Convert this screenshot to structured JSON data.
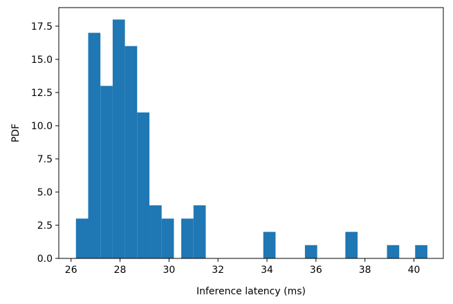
{
  "chart_data": {
    "type": "bar",
    "subtype": "histogram",
    "title": "",
    "xlabel": "Inference latency (ms)",
    "ylabel": "PDF",
    "xlim": [
      25.5,
      41.2
    ],
    "ylim": [
      0,
      18.9
    ],
    "xticks": [
      26,
      28,
      30,
      32,
      34,
      36,
      38,
      40
    ],
    "xtick_labels": [
      "26",
      "28",
      "30",
      "32",
      "34",
      "36",
      "38",
      "40"
    ],
    "yticks": [
      0.0,
      2.5,
      5.0,
      7.5,
      10.0,
      12.5,
      15.0,
      17.5
    ],
    "ytick_labels": [
      "0.0",
      "2.5",
      "5.0",
      "7.5",
      "10.0",
      "12.5",
      "15.0",
      "17.5"
    ],
    "bin_width": 0.5,
    "bins": [
      {
        "start": 26.2,
        "end": 26.7,
        "value": 3
      },
      {
        "start": 26.7,
        "end": 27.2,
        "value": 17
      },
      {
        "start": 27.2,
        "end": 27.7,
        "value": 13
      },
      {
        "start": 27.7,
        "end": 28.2,
        "value": 18
      },
      {
        "start": 28.2,
        "end": 28.7,
        "value": 16
      },
      {
        "start": 28.7,
        "end": 29.2,
        "value": 11
      },
      {
        "start": 29.2,
        "end": 29.7,
        "value": 4
      },
      {
        "start": 29.7,
        "end": 30.2,
        "value": 3
      },
      {
        "start": 30.5,
        "end": 31.0,
        "value": 3
      },
      {
        "start": 31.0,
        "end": 31.5,
        "value": 4
      },
      {
        "start": 33.85,
        "end": 34.35,
        "value": 2
      },
      {
        "start": 35.55,
        "end": 36.05,
        "value": 1
      },
      {
        "start": 37.2,
        "end": 37.7,
        "value": 2
      },
      {
        "start": 38.9,
        "end": 39.4,
        "value": 1
      },
      {
        "start": 40.05,
        "end": 40.55,
        "value": 1
      }
    ],
    "grid": false,
    "colors": {
      "bar": "#1f77b4",
      "axes": "#000000"
    }
  }
}
